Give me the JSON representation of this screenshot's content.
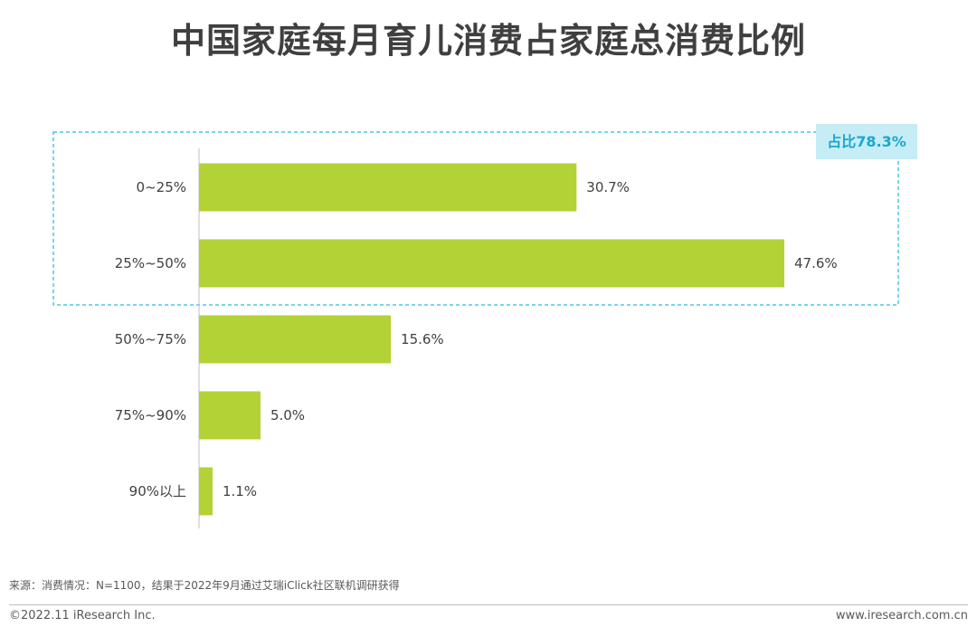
{
  "title": "中国家庭每月育儿消费占家庭总消费比例",
  "highlight": {
    "label": "占比78.3%",
    "border_color": "#4cc7e6",
    "badge_bg": "#c6edf6",
    "text_color": "#1aa7cf"
  },
  "chart_data": {
    "type": "bar",
    "orientation": "horizontal",
    "categories": [
      "0~25%",
      "25%~50%",
      "50%~75%",
      "75%~90%",
      "90%以上"
    ],
    "values": [
      30.7,
      47.6,
      15.6,
      5.0,
      1.1
    ],
    "value_labels": [
      "30.7%",
      "47.6%",
      "15.6%",
      "5.0%",
      "1.1%"
    ],
    "unit": "%",
    "xlim": [
      0,
      50
    ],
    "grid": false,
    "legend": "none",
    "bar_color": "#b2d235",
    "axis_color": "#bfbfbf"
  },
  "source": "来源：消费情况：N=1100，结果于2022年9月通过艾瑞iClick社区联机调研获得",
  "footer": {
    "copyright": "©2022.11 iResearch Inc.",
    "url": "www.iresearch.com.cn"
  }
}
